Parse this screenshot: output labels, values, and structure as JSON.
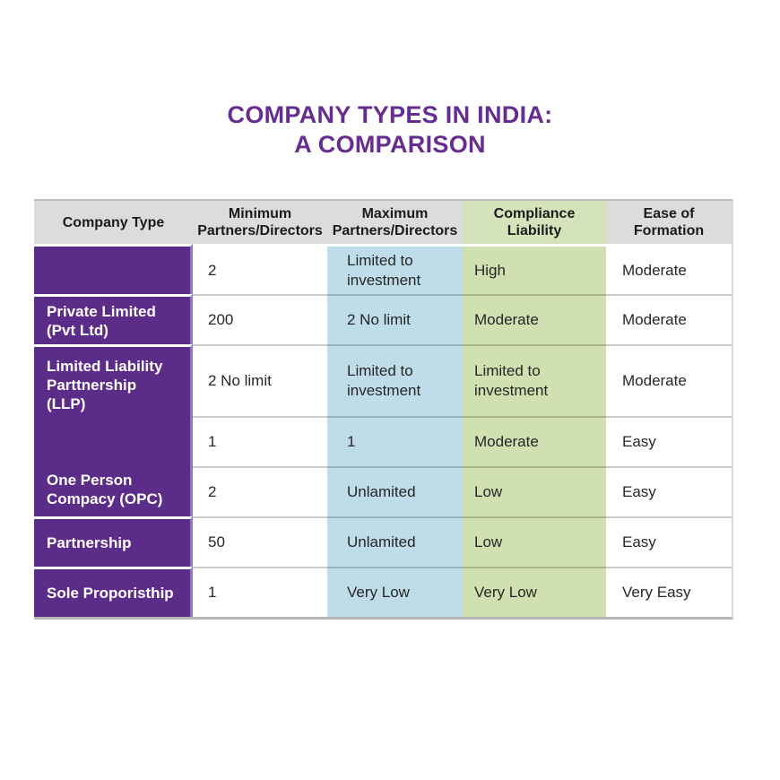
{
  "title": {
    "line1": "COMPANY TYPES IN INDIA:",
    "line2": "A COMPARISON"
  },
  "colors": {
    "title_purple": "#662d91",
    "company_column_purple": "#5c2d88",
    "company_column_edge": "#9177be",
    "max_column_blue": "#bedde9",
    "compliance_column_green": "#d0e0b1",
    "header_gray": "#dcdcdc",
    "body_text": "#262626"
  },
  "table": {
    "headers": [
      "Company Type",
      "Minimum\nPartners/Directors",
      "Maximum\nPartners/Directors",
      "Compliance\nLiability",
      "Ease of\nFormation"
    ],
    "company_labels": {
      "row1": "",
      "row2": "Private Limited\n(Pvt Ltd)",
      "merged_top": "Limited Liability\nParttnership\n(LLP)",
      "merged_bottom": "One Person\nCompacy (OPC)",
      "row6": "Partnership",
      "row7": "Sole Proporisthip"
    },
    "rows": [
      {
        "min": "2",
        "max": "Limited to\ninvestment",
        "compliance": "High",
        "ease": "Moderate"
      },
      {
        "min": "200",
        "max": "2 No limit",
        "compliance": "Moderate",
        "ease": "Moderate"
      },
      {
        "min": "2 No limit",
        "max": "Limited to\ninvestment",
        "compliance": "Limited to\ninvestment",
        "ease": "Moderate"
      },
      {
        "min": "1",
        "max": "1",
        "compliance": "Moderate",
        "ease": "Easy"
      },
      {
        "min": "2",
        "max": "Unlamited",
        "compliance": "Low",
        "ease": "Easy"
      },
      {
        "min": "50",
        "max": "Unlamited",
        "compliance": "Low",
        "ease": "Easy"
      },
      {
        "min": "1",
        "max": "Very Low",
        "compliance": "Very Low",
        "ease": "Very Easy"
      }
    ]
  },
  "chart_data": {
    "type": "table",
    "title": "COMPANY TYPES IN INDIA: A COMPARISON",
    "columns": [
      "Company Type",
      "Minimum Partners/Directors",
      "Maximum Partners/Directors",
      "Compliance Liability",
      "Ease of Formation"
    ],
    "rows": [
      [
        "",
        "2",
        "Limited to investment",
        "High",
        "Moderate"
      ],
      [
        "Private Limited (Pvt Ltd)",
        "200",
        "2 No limit",
        "Moderate",
        "Moderate"
      ],
      [
        "Limited Liability Parttnership (LLP)",
        "2 No limit",
        "Limited to investment",
        "Limited to investment",
        "Moderate"
      ],
      [
        "",
        "1",
        "1",
        "Moderate",
        "Easy"
      ],
      [
        "One Person Compacy (OPC)",
        "2",
        "Unlamited",
        "Low",
        "Easy"
      ],
      [
        "Partnership",
        "50",
        "Unlamited",
        "Low",
        "Easy"
      ],
      [
        "Sole Proporisthip",
        "1",
        "Very Low",
        "Very Low",
        "Very Easy"
      ]
    ],
    "layout": {
      "column_backgrounds": [
        "#5c2d88",
        "#ffffff",
        "#bedde9",
        "#d0e0b1",
        "#ffffff"
      ],
      "header_background": [
        "#dcdcdc",
        "#dcdcdc",
        "#dcdcdc",
        "#d5e3bb",
        "#dcdcdc"
      ],
      "company_cell_merged_rows": [
        3,
        4,
        5
      ]
    }
  }
}
